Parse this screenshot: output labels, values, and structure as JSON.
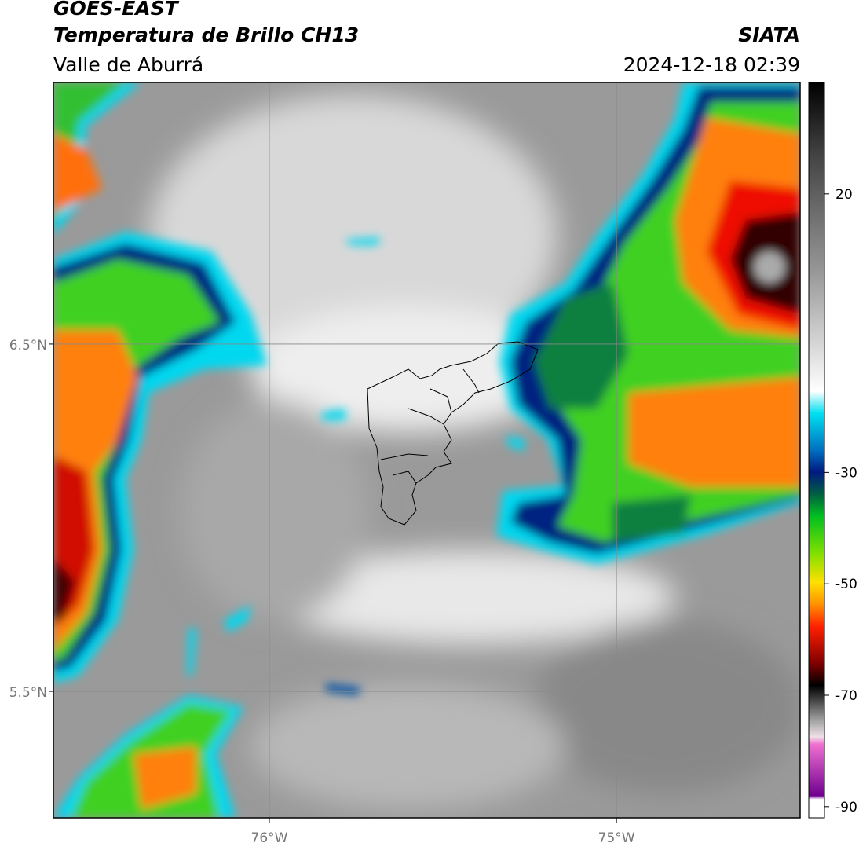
{
  "header": {
    "satellite": "GOES-EAST",
    "product": "Temperatura de Brillo CH13",
    "region": "Valle de Aburrá",
    "source": "SIATA",
    "datetime": "2024-12-18 02:39"
  },
  "map": {
    "xlim": [
      -76.622,
      -74.471
    ],
    "ylim": [
      5.136,
      7.253
    ],
    "lats": [
      {
        "value": 6.5,
        "label": "6.5°N"
      },
      {
        "value": 5.5,
        "label": "5.5°N"
      }
    ],
    "lons": [
      {
        "value": -76,
        "label": "76°W"
      },
      {
        "value": -75,
        "label": "75°W"
      }
    ]
  },
  "colorbar": {
    "range": [
      -92,
      40
    ],
    "ticks": [
      20,
      -30,
      -50,
      -70,
      -90
    ]
  }
}
